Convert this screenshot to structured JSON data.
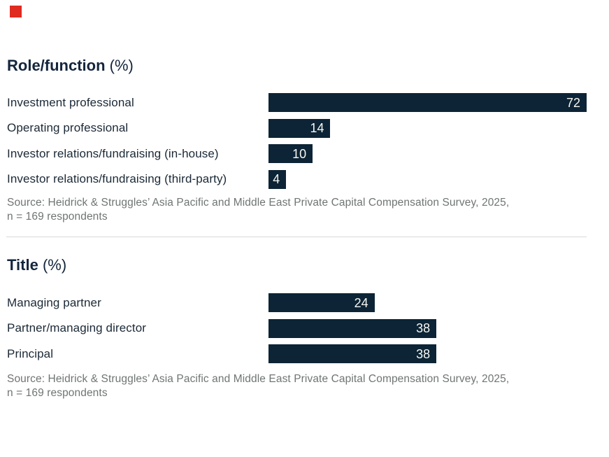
{
  "colors": {
    "bar": "#0C2435",
    "accent_mark": "#E02B20",
    "heading_ink": "#14263C",
    "label_ink": "#1B2936",
    "source_gray": "#6F7572",
    "value_text": "#F7F7F2",
    "divider": "#D9D9D9"
  },
  "chart_data": [
    {
      "type": "bar",
      "orientation": "horizontal",
      "title": "Role/function (%)",
      "title_main": "Role/function",
      "title_unit": "(%)",
      "categories": [
        "Investment professional",
        "Operating professional",
        "Investor relations/fundraising (in-house)",
        "Investor relations/fundraising (third-party)"
      ],
      "values": [
        72,
        14,
        10,
        4
      ],
      "xlim": [
        0,
        72
      ],
      "unit": "%",
      "grid": false,
      "value_labels": "inside-right",
      "source_line1": "Source: Heidrick & Struggles’ Asia Pacific and Middle East Private Capital Compensation Survey, 2025,",
      "source_line2": "n = 169 respondents"
    },
    {
      "type": "bar",
      "orientation": "horizontal",
      "title": "Title (%)",
      "title_main": "Title",
      "title_unit": "(%)",
      "categories": [
        "Managing partner",
        "Partner/managing director",
        "Principal"
      ],
      "values": [
        24,
        38,
        38
      ],
      "xlim": [
        0,
        72
      ],
      "unit": "%",
      "grid": false,
      "value_labels": "inside-right",
      "source_line1": "Source: Heidrick & Struggles’ Asia Pacific and Middle East Private Capital Compensation Survey, 2025,",
      "source_line2": "n = 169 respondents"
    }
  ]
}
